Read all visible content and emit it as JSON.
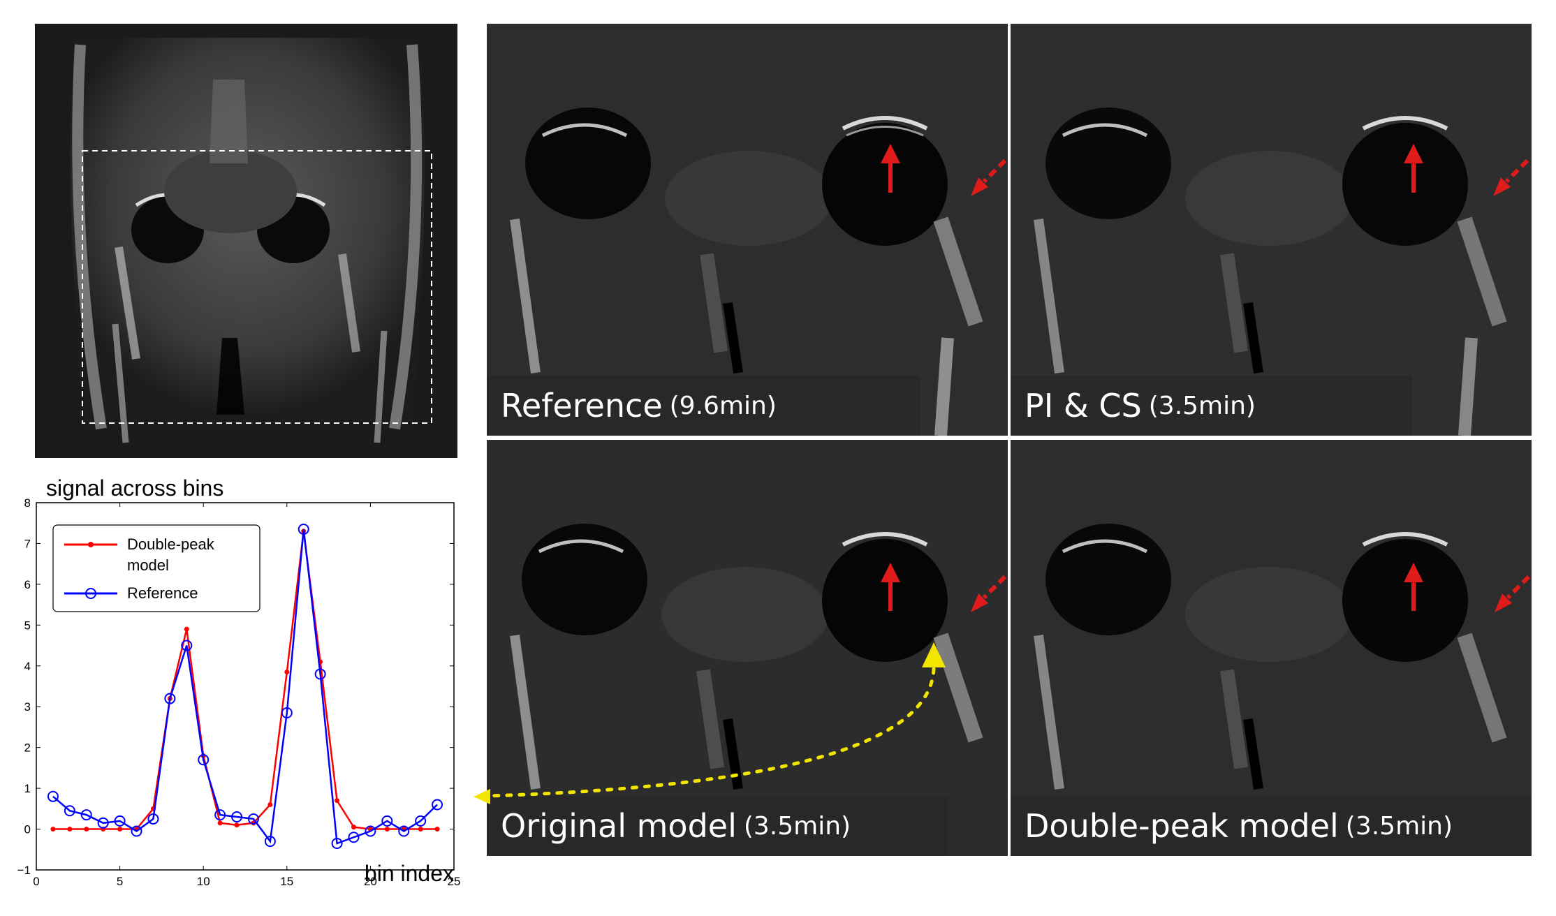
{
  "panels": {
    "reference": {
      "label": "Reference",
      "time": "(9.6min)"
    },
    "pi_cs": {
      "label": "PI & CS",
      "time": "(3.5min)"
    },
    "original": {
      "label": "Original model",
      "time": "(3.5min)"
    },
    "double_peak": {
      "label": "Double-peak model",
      "time": "(3.5min)"
    }
  },
  "colors": {
    "arrow_red": "#e01b1b",
    "marker_yellow": "#f2e600",
    "series_red": "#ff0000",
    "series_blue": "#0000ff"
  },
  "chart_data": {
    "type": "line",
    "title": "signal across bins",
    "xlabel": "bin index",
    "ylabel": "",
    "xlim": [
      0,
      25
    ],
    "ylim": [
      -1,
      8
    ],
    "xticks": [
      0,
      5,
      10,
      15,
      20,
      25
    ],
    "yticks": [
      -1,
      0,
      1,
      2,
      3,
      4,
      5,
      6,
      7,
      8
    ],
    "legend_position": "top-left",
    "series": [
      {
        "name": "Double-peak model",
        "color": "#ff0000",
        "marker": "filled-dot",
        "x": [
          1,
          2,
          3,
          4,
          5,
          6,
          7,
          8,
          9,
          10,
          11,
          12,
          13,
          14,
          15,
          16,
          17,
          18,
          19,
          20,
          21,
          22,
          23,
          24
        ],
        "y": [
          0,
          0,
          0,
          0,
          0,
          0,
          0.5,
          3.2,
          4.9,
          1.8,
          0.15,
          0.1,
          0.15,
          0.6,
          3.85,
          7.3,
          4.1,
          0.7,
          0.05,
          0,
          0,
          0,
          0,
          0
        ]
      },
      {
        "name": "Reference",
        "color": "#0000ff",
        "marker": "open-circle",
        "x": [
          1,
          2,
          3,
          4,
          5,
          6,
          7,
          8,
          9,
          10,
          11,
          12,
          13,
          14,
          15,
          16,
          17,
          18,
          19,
          20,
          21,
          22,
          23,
          24
        ],
        "y": [
          0.8,
          0.45,
          0.35,
          0.15,
          0.2,
          -0.05,
          0.25,
          3.2,
          4.5,
          1.7,
          0.35,
          0.3,
          0.25,
          -0.3,
          2.85,
          7.35,
          3.8,
          -0.35,
          -0.2,
          -0.05,
          0.2,
          -0.05,
          0.2,
          0.6
        ]
      }
    ]
  }
}
